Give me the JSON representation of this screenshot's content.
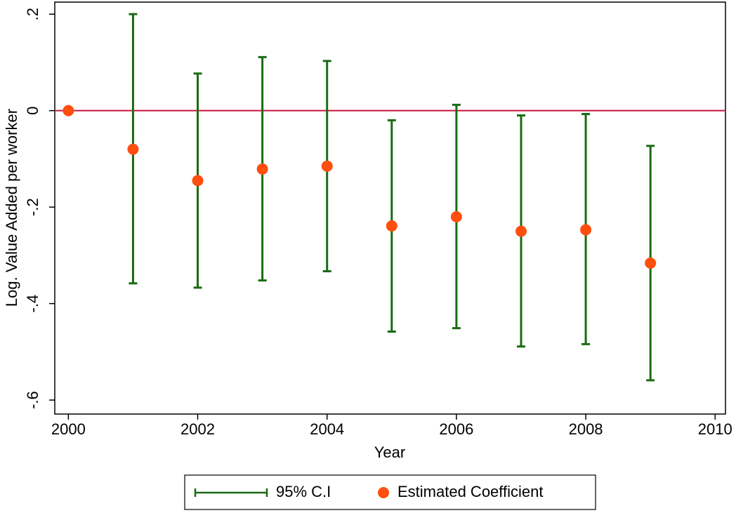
{
  "chart_data": {
    "type": "errorbar",
    "x_label": "Year",
    "y_label": "Log. Value Added per worker",
    "x": [
      2000,
      2001,
      2002,
      2003,
      2004,
      2005,
      2006,
      2007,
      2008,
      2009
    ],
    "series": [
      {
        "name": "95% C.I",
        "color": "#1a6b12",
        "lower": [
          null,
          -0.358,
          -0.367,
          -0.352,
          -0.333,
          -0.458,
          -0.451,
          -0.489,
          -0.484,
          -0.559
        ],
        "upper": [
          null,
          0.2,
          0.077,
          0.111,
          0.103,
          -0.02,
          0.012,
          -0.01,
          -0.007,
          -0.073
        ]
      },
      {
        "name": "Estimated Coefficient",
        "color": "#ff4f0f",
        "values": [
          0,
          -0.08,
          -0.145,
          -0.121,
          -0.115,
          -0.239,
          -0.22,
          -0.25,
          -0.247,
          -0.316
        ]
      }
    ],
    "reference_line": {
      "value": 0,
      "color": "#c8143c"
    },
    "xlim": [
      1999.79,
      2010.16
    ],
    "xticks": [
      2000,
      2002,
      2004,
      2006,
      2008,
      2010
    ],
    "ylim": [
      -0.629,
      0.225
    ],
    "yticks": [
      {
        "value": 0.2,
        "label": ".2"
      },
      0,
      {
        "value": -0.2,
        "label": "-.2"
      },
      {
        "value": -0.4,
        "label": "-.4"
      },
      {
        "value": -0.6,
        "label": "-.6"
      }
    ],
    "legend": "bottom"
  }
}
